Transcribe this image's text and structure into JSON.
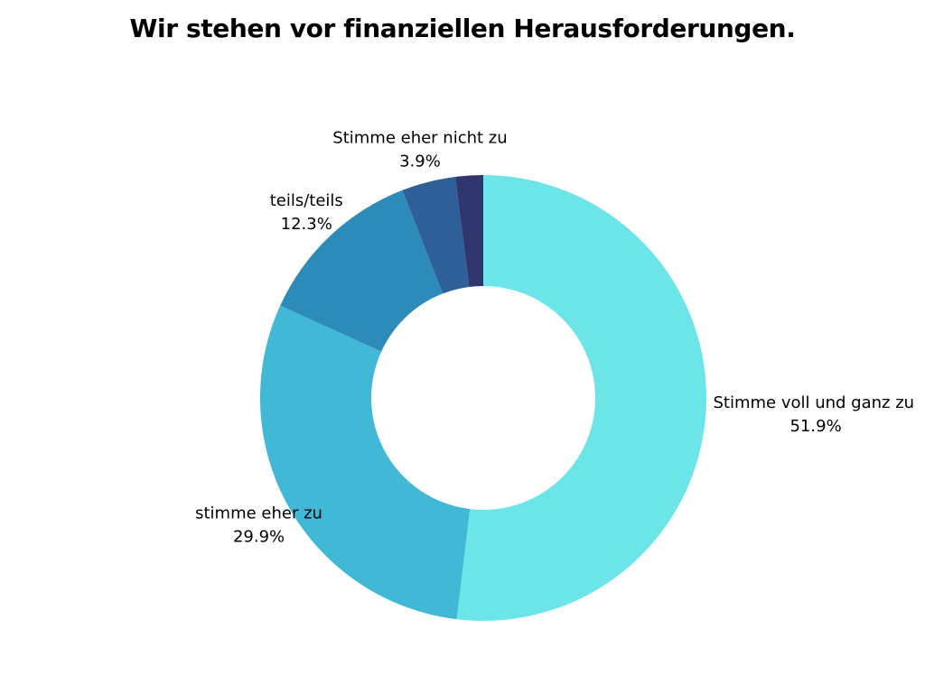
{
  "chart_data": {
    "type": "pie",
    "donut": true,
    "title": "Wir stehen vor finanziellen Herausforderungen.",
    "slices": [
      {
        "label": "Stimme voll und ganz zu",
        "value": 51.9,
        "value_label": "51.9%",
        "color": "#6ce5e8"
      },
      {
        "label": "stimme eher zu",
        "value": 29.9,
        "value_label": "29.9%",
        "color": "#41b8d5"
      },
      {
        "label": "teils/teils",
        "value": 12.3,
        "value_label": "12.3%",
        "color": "#2d8bba"
      },
      {
        "label": "Stimme eher nicht zu",
        "value": 3.9,
        "value_label": "3.9%",
        "color": "#2f5f98"
      },
      {
        "label": "",
        "value": 2.0,
        "value_label": "",
        "color": "#31356e"
      }
    ]
  }
}
